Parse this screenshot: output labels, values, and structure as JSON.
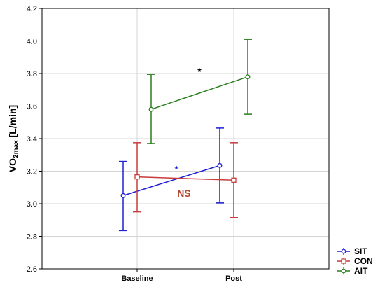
{
  "chart_data": {
    "type": "line",
    "title": "",
    "xlabel": "",
    "ylabel_main": "VO",
    "ylabel_sub": "2max",
    "ylabel_unit": " [L/min]",
    "categories": [
      "Baseline",
      "Post"
    ],
    "ylim": [
      2.6,
      4.2
    ],
    "yticks": [
      "2.6",
      "2.8",
      "3.0",
      "3.2",
      "3.4",
      "3.6",
      "3.8",
      "4.0",
      "4.2"
    ],
    "ytick_values": [
      2.6,
      2.8,
      3.0,
      3.2,
      3.4,
      3.6,
      3.8,
      4.0,
      4.2
    ],
    "grid": true,
    "legend_position": "bottom-right",
    "series": [
      {
        "name": "SIT",
        "color": "#1f1fd6",
        "marker": "circle",
        "values": [
          3.05,
          3.235
        ],
        "err_low": [
          2.835,
          3.005
        ],
        "err_high": [
          3.26,
          3.465
        ]
      },
      {
        "name": "CON",
        "color": "#c83c3c",
        "marker": "square",
        "values": [
          3.165,
          3.145
        ],
        "err_low": [
          2.95,
          2.915
        ],
        "err_high": [
          3.375,
          3.375
        ]
      },
      {
        "name": "AIT",
        "color": "#2a7d1e",
        "marker": "circle",
        "values": [
          3.58,
          3.78
        ],
        "err_low": [
          3.37,
          3.55
        ],
        "err_high": [
          3.795,
          4.01
        ]
      }
    ],
    "annotations": [
      {
        "text": "*",
        "series": "AIT",
        "color": "#000000"
      },
      {
        "text": "*",
        "series": "SIT",
        "color": "#1f1fd6"
      },
      {
        "text": "NS",
        "series": "CON",
        "color": "#b5462e"
      }
    ]
  }
}
